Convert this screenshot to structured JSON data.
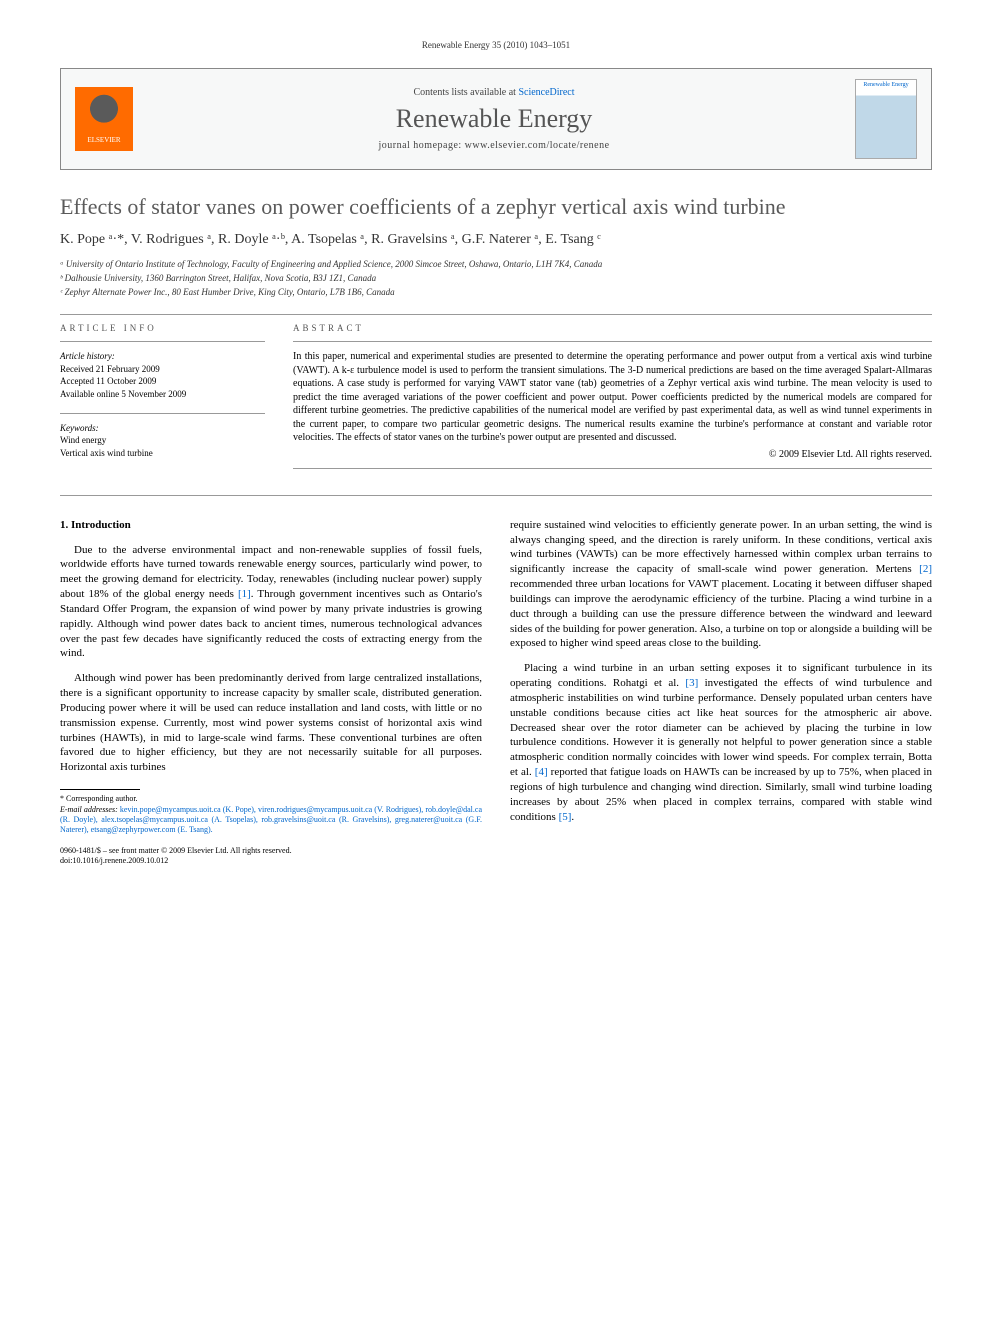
{
  "running_header": "Renewable Energy 35 (2010) 1043–1051",
  "journal_box": {
    "contents_prefix": "Contents lists available at ",
    "contents_link": "ScienceDirect",
    "journal_name": "Renewable Energy",
    "homepage_prefix": "journal homepage: ",
    "homepage_url": "www.elsevier.com/locate/renene",
    "publisher_logo_text": "ELSEVIER",
    "cover_text": "Renewable Energy"
  },
  "title": "Effects of stator vanes on power coefficients of a zephyr vertical axis wind turbine",
  "authors_line": "K. Pope ᵃ·*, V. Rodrigues ᵃ, R. Doyle ᵃ·ᵇ, A. Tsopelas ᵃ, R. Gravelsins ᵃ, G.F. Naterer ᵃ, E. Tsang ᶜ",
  "affiliations": [
    "ᵃ University of Ontario Institute of Technology, Faculty of Engineering and Applied Science, 2000 Simcoe Street, Oshawa, Ontario, L1H 7K4, Canada",
    "ᵇ Dalhousie University, 1360 Barrington Street, Halifax, Nova Scotia, B3J 1Z1, Canada",
    "ᶜ Zephyr Alternate Power Inc., 80 East Humber Drive, King City, Ontario, L7B 1B6, Canada"
  ],
  "article_info": {
    "label": "ARTICLE INFO",
    "history_hdr": "Article history:",
    "history": [
      "Received 21 February 2009",
      "Accepted 11 October 2009",
      "Available online 5 November 2009"
    ],
    "keywords_hdr": "Keywords:",
    "keywords": [
      "Wind energy",
      "Vertical axis wind turbine"
    ]
  },
  "abstract": {
    "label": "ABSTRACT",
    "text": "In this paper, numerical and experimental studies are presented to determine the operating performance and power output from a vertical axis wind turbine (VAWT). A k-ε turbulence model is used to perform the transient simulations. The 3-D numerical predictions are based on the time averaged Spalart-Allmaras equations. A case study is performed for varying VAWT stator vane (tab) geometries of a Zephyr vertical axis wind turbine. The mean velocity is used to predict the time averaged variations of the power coefficient and power output. Power coefficients predicted by the numerical models are compared for different turbine geometries. The predictive capabilities of the numerical model are verified by past experimental data, as well as wind tunnel experiments in the current paper, to compare two particular geometric designs. The numerical results examine the turbine's performance at constant and variable rotor velocities. The effects of stator vanes on the turbine's power output are presented and discussed.",
    "copyright": "© 2009 Elsevier Ltd. All rights reserved."
  },
  "section1": {
    "heading": "1. Introduction",
    "p1": "Due to the adverse environmental impact and non-renewable supplies of fossil fuels, worldwide efforts have turned towards renewable energy sources, particularly wind power, to meet the growing demand for electricity. Today, renewables (including nuclear power) supply about 18% of the global energy needs [1]. Through government incentives such as Ontario's Standard Offer Program, the expansion of wind power by many private industries is growing rapidly. Although wind power dates back to ancient times, numerous technological advances over the past few decades have significantly reduced the costs of extracting energy from the wind.",
    "p2": "Although wind power has been predominantly derived from large centralized installations, there is a significant opportunity to increase capacity by smaller scale, distributed generation. Producing power where it will be used can reduce installation and land costs, with little or no transmission expense. Currently, most wind power systems consist of horizontal axis wind turbines (HAWTs), in mid to large-scale wind farms. These conventional turbines are often favored due to higher efficiency, but they are not necessarily suitable for all purposes. Horizontal axis turbines",
    "p3": "require sustained wind velocities to efficiently generate power. In an urban setting, the wind is always changing speed, and the direction is rarely uniform. In these conditions, vertical axis wind turbines (VAWTs) can be more effectively harnessed within complex urban terrains to significantly increase the capacity of small-scale wind power generation. Mertens [2] recommended three urban locations for VAWT placement. Locating it between diffuser shaped buildings can improve the aerodynamic efficiency of the turbine. Placing a wind turbine in a duct through a building can use the pressure difference between the windward and leeward sides of the building for power generation. Also, a turbine on top or alongside a building will be exposed to higher wind speed areas close to the building.",
    "p4": "Placing a wind turbine in an urban setting exposes it to significant turbulence in its operating conditions. Rohatgi et al. [3] investigated the effects of wind turbulence and atmospheric instabilities on wind turbine performance. Densely populated urban centers have unstable conditions because cities act like heat sources for the atmospheric air above. Decreased shear over the rotor diameter can be achieved by placing the turbine in low turbulence conditions. However it is generally not helpful to power generation since a stable atmospheric condition normally coincides with lower wind speeds. For complex terrain, Botta et al. [4] reported that fatigue loads on HAWTs can be increased by up to 75%, when placed in regions of high turbulence and changing wind direction. Similarly, small wind turbine loading increases by about 25% when placed in complex terrains, compared with stable wind conditions [5]."
  },
  "footnotes": {
    "corresponding": "* Corresponding author.",
    "emails_label": "E-mail addresses:",
    "emails": "kevin.pope@mycampus.uoit.ca (K. Pope), viren.rodrigues@mycampus.uoit.ca (V. Rodrigues), rob.doyle@dal.ca (R. Doyle), alex.tsopelas@mycampus.uoit.ca (A. Tsopelas), rob.gravelsins@uoit.ca (R. Gravelsins), greg.naterer@uoit.ca (G.F. Naterer), etsang@zephyrpower.com (E. Tsang)."
  },
  "doi": {
    "line1": "0960-1481/$ – see front matter © 2009 Elsevier Ltd. All rights reserved.",
    "line2": "doi:10.1016/j.renene.2009.10.012"
  },
  "colors": {
    "link": "#0066cc",
    "title": "#5a5a5a",
    "elsevier_orange": "#ff6b00",
    "border": "#888888",
    "text": "#000000"
  }
}
